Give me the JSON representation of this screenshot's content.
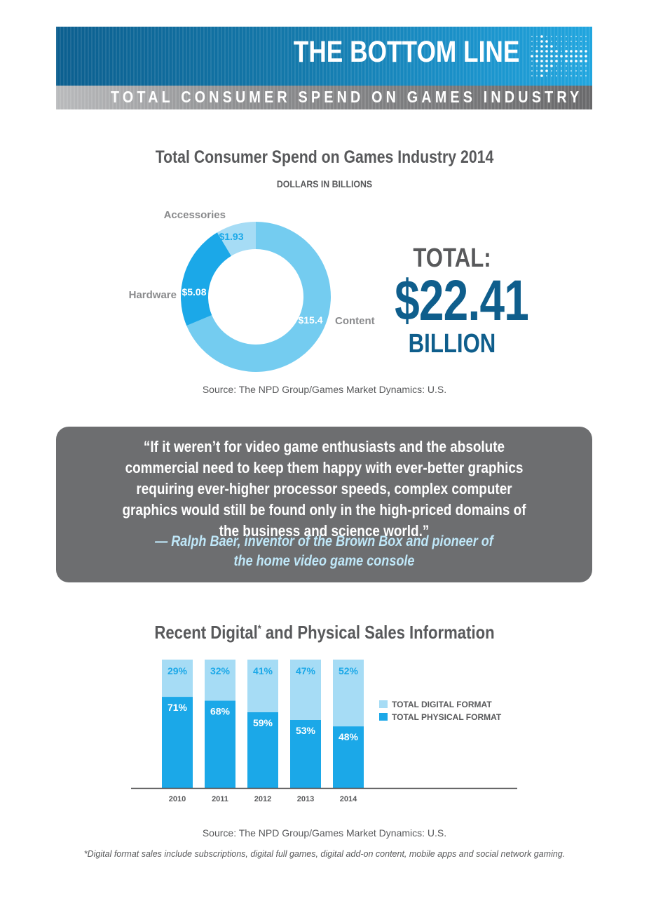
{
  "header": {
    "title": "THE BOTTOM LINE",
    "subtitle": "TOTAL CONSUMER SPEND ON GAMES INDUSTRY"
  },
  "colors": {
    "light_blue": "#a6dcf5",
    "mid_blue": "#74ccf0",
    "bright_blue": "#1ba8e8",
    "dark_blue": "#0f5e8c",
    "gray_box": "#6d6e70"
  },
  "chart_data": [
    {
      "type": "pie",
      "title": "Total Consumer Spend on Games Industry 2014",
      "subtitle": "DOLLARS IN BILLIONS",
      "slices": [
        {
          "name": "Content",
          "value": 15.4,
          "label": "$15.4"
        },
        {
          "name": "Hardware",
          "value": 5.08,
          "label": "$5.08"
        },
        {
          "name": "Accessories",
          "value": 1.93,
          "label": "$1.93"
        }
      ],
      "total_label": "TOTAL:",
      "total_value": "$22.41",
      "total_unit": "BILLION",
      "source": "Source: The NPD Group/Games Market Dynamics: U.S."
    },
    {
      "type": "bar",
      "title": "Recent Digital",
      "title_mark": "*",
      "title_rest": " and Physical Sales Information",
      "categories": [
        "2010",
        "2011",
        "2012",
        "2013",
        "2014"
      ],
      "series": [
        {
          "name": "TOTAL DIGITAL FORMAT",
          "values": [
            29,
            32,
            41,
            47,
            52
          ]
        },
        {
          "name": "TOTAL PHYSICAL FORMAT",
          "values": [
            71,
            68,
            59,
            53,
            48
          ]
        }
      ],
      "stacked": true,
      "ylim": [
        0,
        100
      ],
      "legend_position": "right",
      "source": "Source: The NPD Group/Games Market Dynamics: U.S.",
      "footnote": "*Digital format sales include subscriptions, digital full games, digital add-on content, mobile apps and social network gaming."
    }
  ],
  "quote": {
    "text": "“If it weren’t for video game enthusiasts and the absolute commercial need to keep them happy with ever-better graphics requiring ever-higher processor speeds, complex computer graphics would still be found only in the high-priced domains of the business and science world.”",
    "author_line1": "— Ralph Baer, inventor of the Brown Box and pioneer of",
    "author_line2": "the home video game console"
  }
}
